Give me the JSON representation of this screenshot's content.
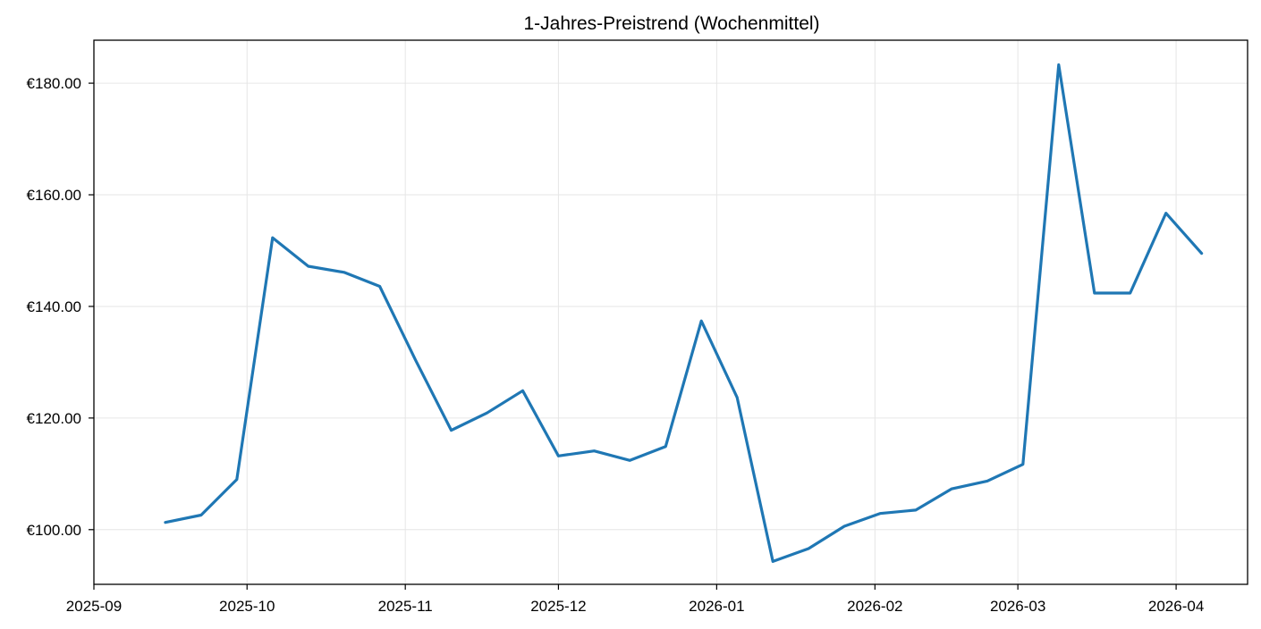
{
  "chart_data": {
    "type": "line",
    "title": "1-Jahres-Preistrend (Wochenmittel)",
    "xlabel": "",
    "ylabel": "",
    "x_tick_labels": [
      "2025-09",
      "2025-10",
      "2025-11",
      "2025-12",
      "2026-01",
      "2026-02",
      "2026-03",
      "2026-04"
    ],
    "y_tick_labels": [
      "€100.00",
      "€120.00",
      "€140.00",
      "€160.00",
      "€180.00"
    ],
    "y_ticks": [
      100,
      120,
      140,
      160,
      180
    ],
    "xlim": [
      "2025-09-01",
      "2026-04-15"
    ],
    "ylim": [
      90.2,
      187.7
    ],
    "grid": true,
    "legend": "none",
    "series": [
      {
        "color": "#1f77b4",
        "x": [
          "2025-09-15",
          "2025-09-22",
          "2025-09-29",
          "2025-10-06",
          "2025-10-13",
          "2025-10-20",
          "2025-10-27",
          "2025-11-03",
          "2025-11-10",
          "2025-11-17",
          "2025-11-24",
          "2025-12-01",
          "2025-12-08",
          "2025-12-15",
          "2025-12-22",
          "2025-12-29",
          "2026-01-05",
          "2026-01-12",
          "2026-01-19",
          "2026-01-26",
          "2026-02-02",
          "2026-02-09",
          "2026-02-16",
          "2026-02-23",
          "2026-03-02",
          "2026-03-09",
          "2026-03-16",
          "2026-03-23",
          "2026-03-30",
          "2026-04-06"
        ],
        "values": [
          101.3,
          102.6,
          109.0,
          152.3,
          147.2,
          146.1,
          143.6,
          130.4,
          117.8,
          120.9,
          124.9,
          113.2,
          114.1,
          112.4,
          114.9,
          137.4,
          123.7,
          94.3,
          96.6,
          100.6,
          102.9,
          103.5,
          107.3,
          108.7,
          111.7,
          183.3,
          142.4,
          142.4,
          156.7,
          149.5
        ]
      }
    ]
  }
}
